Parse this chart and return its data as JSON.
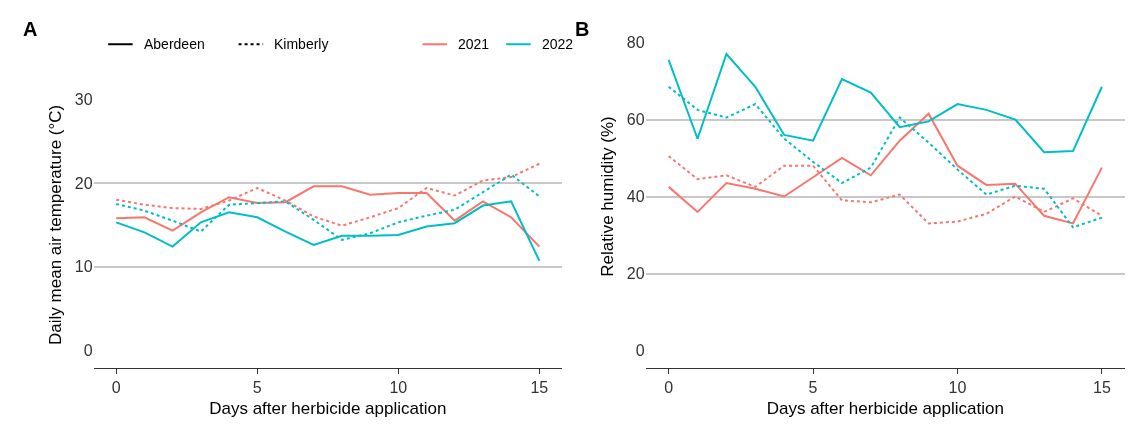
{
  "chart_data": [
    {
      "type": "line",
      "title": "A",
      "xlabel": "Days after herbicide application",
      "ylabel": "Daily mean air temperature (°C)",
      "x": [
        0,
        1,
        2,
        3,
        4,
        5,
        6,
        7,
        8,
        9,
        10,
        11,
        12,
        13,
        14,
        15
      ],
      "xlim": [
        -0.8,
        15.8
      ],
      "xticks": [
        0,
        5,
        10,
        15
      ],
      "ylim": [
        0,
        30
      ],
      "yticks": [
        0,
        10,
        20,
        30
      ],
      "grid": "y",
      "annotations": [
        "Aberdeen",
        "Kimberly",
        "2021",
        "2022"
      ],
      "series": [
        {
          "color": "#f8766d",
          "line_style": "solid",
          "values": [
            15.8,
            15.9,
            14.3,
            16.5,
            18.3,
            17.6,
            17.7,
            19.6,
            19.6,
            18.6,
            18.8,
            18.8,
            15.5,
            17.8,
            15.9,
            12.4
          ]
        },
        {
          "color": "#00bfc4",
          "line_style": "solid",
          "values": [
            15.3,
            14.1,
            12.4,
            15.3,
            16.5,
            15.9,
            14.2,
            12.6,
            13.7,
            13.7,
            13.8,
            14.8,
            15.2,
            17.3,
            17.8,
            10.7
          ]
        },
        {
          "color": "#f8766d",
          "line_style": "dotted",
          "values": [
            18.0,
            17.4,
            17.0,
            16.9,
            17.9,
            19.4,
            17.9,
            16.0,
            14.9,
            15.9,
            17.0,
            19.4,
            18.5,
            20.3,
            20.7,
            22.3
          ]
        },
        {
          "color": "#00bfc4",
          "line_style": "dotted",
          "values": [
            17.5,
            16.7,
            15.5,
            14.2,
            17.4,
            17.6,
            17.8,
            15.6,
            13.2,
            14.0,
            15.3,
            16.1,
            16.8,
            18.9,
            21.0,
            18.4
          ]
        }
      ]
    },
    {
      "type": "line",
      "title": "B",
      "xlabel": "Days after herbicide application",
      "ylabel": "Relative humidity (%)",
      "x": [
        0,
        1,
        2,
        3,
        4,
        5,
        6,
        7,
        8,
        9,
        10,
        11,
        12,
        13,
        14,
        15
      ],
      "xlim": [
        -0.8,
        15.8
      ],
      "xticks": [
        0,
        5,
        10,
        15
      ],
      "ylim": [
        0,
        80
      ],
      "yticks": [
        0,
        20,
        40,
        60,
        80
      ],
      "grid": "y",
      "series": [
        {
          "color": "#f8766d",
          "line_style": "solid",
          "values": [
            42.5,
            36,
            43.5,
            42,
            40,
            45,
            50,
            45.5,
            54.5,
            61.5,
            48,
            43,
            43.3,
            35,
            33,
            47.5
          ]
        },
        {
          "color": "#00bfc4",
          "line_style": "solid",
          "values": [
            75.5,
            55,
            77,
            68.5,
            56,
            54.5,
            70.5,
            67,
            58,
            59.5,
            64,
            62.5,
            60,
            51.5,
            51.8,
            68.5
          ]
        },
        {
          "color": "#f8766d",
          "line_style": "dotted",
          "values": [
            50.5,
            44.5,
            45.5,
            42.5,
            48,
            48,
            39,
            38.5,
            40.5,
            33,
            33.5,
            35.5,
            40,
            36,
            39.5,
            35
          ]
        },
        {
          "color": "#00bfc4",
          "line_style": "dotted",
          "values": [
            68.5,
            62.5,
            60.5,
            64,
            55,
            49,
            43.5,
            47.5,
            60.5,
            54,
            47,
            40.5,
            42.8,
            42,
            32,
            34.5
          ]
        }
      ]
    }
  ]
}
